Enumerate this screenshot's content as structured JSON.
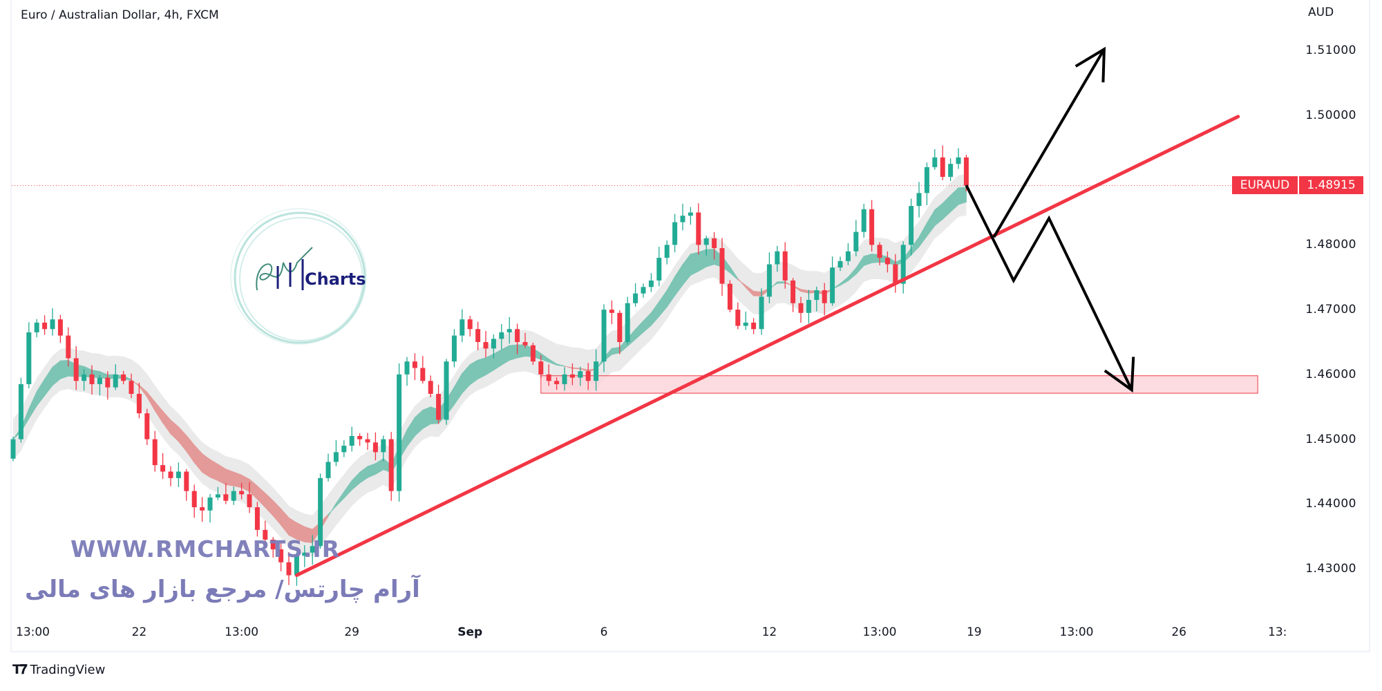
{
  "header": {
    "title": "Euro / Australian Dollar, 4h, FXCM",
    "currency": "AUD"
  },
  "price_tag": {
    "symbol": "EURAUD",
    "value": "1.48915",
    "color": "#f23645"
  },
  "watermark": {
    "url": "WWW.RMCHARTS.IR",
    "persian": "آرام چارتس/ مرجع بازار های مالی",
    "logo_text": "Charts",
    "color": "#7b7bb8"
  },
  "footer": {
    "brand": "TradingView"
  },
  "colors": {
    "up": "#22ab94",
    "down": "#f23645",
    "ribbon_up": "#7cc4b4",
    "ribbon_down": "#e39a98",
    "envelope": "#e6e6e6",
    "trendline": "#f23645",
    "zone": "#fbd6da"
  },
  "chart_data": {
    "type": "candlestick",
    "title": "Euro / Australian Dollar, 4h, FXCM",
    "ylabel": "AUD",
    "ylim": [
      1.4218,
      1.5178
    ],
    "y_ticks": [
      "1.51000",
      "1.50000",
      "1.48000",
      "1.47000",
      "1.46000",
      "1.45000",
      "1.44000",
      "1.43000"
    ],
    "y_tick_values": [
      1.51,
      1.5,
      1.48,
      1.47,
      1.46,
      1.45,
      1.44,
      1.43
    ],
    "x_ticks": [
      "13:00",
      "22",
      "13:00",
      "29",
      "Sep",
      "6",
      "12",
      "13:00",
      "19",
      "13:00",
      "26",
      "13:"
    ],
    "x_tick_bold": [
      false,
      false,
      false,
      false,
      true,
      false,
      false,
      false,
      false,
      false,
      false,
      false
    ],
    "x_tick_candle_index": [
      2.5,
      16,
      29,
      43,
      58,
      75,
      96,
      110,
      122,
      135,
      148,
      160.5
    ],
    "first_open": 1.447,
    "closes": [
      1.45,
      1.4585,
      1.4665,
      1.468,
      1.467,
      1.4685,
      1.466,
      1.4625,
      1.459,
      1.46,
      1.4585,
      1.4595,
      1.458,
      1.46,
      1.459,
      1.457,
      1.454,
      1.45,
      1.446,
      1.445,
      1.444,
      1.445,
      1.442,
      1.4395,
      1.439,
      1.441,
      1.4415,
      1.4405,
      1.442,
      1.4415,
      1.4395,
      1.436,
      1.4345,
      1.433,
      1.431,
      1.429,
      1.432,
      1.4325,
      1.4335,
      1.444,
      1.4465,
      1.448,
      1.449,
      1.4505,
      1.45,
      1.4495,
      1.448,
      1.45,
      1.442,
      1.46,
      1.462,
      1.461,
      1.459,
      1.457,
      1.453,
      1.462,
      1.466,
      1.4685,
      1.467,
      1.465,
      1.464,
      1.4655,
      1.4665,
      1.467,
      1.465,
      1.4645,
      1.462,
      1.46,
      1.459,
      1.4585,
      1.46,
      1.4595,
      1.4605,
      1.459,
      1.462,
      1.47,
      1.4695,
      1.465,
      1.471,
      1.4725,
      1.4735,
      1.4745,
      1.478,
      1.48,
      1.4835,
      1.4845,
      1.485,
      1.48,
      1.481,
      1.4795,
      1.474,
      1.47,
      1.4675,
      1.468,
      1.467,
      1.472,
      1.477,
      1.479,
      1.4745,
      1.471,
      1.4695,
      1.4715,
      1.473,
      1.471,
      1.4765,
      1.4775,
      1.479,
      1.482,
      1.4855,
      1.48,
      1.478,
      1.477,
      1.474,
      1.48,
      1.486,
      1.488,
      1.492,
      1.4935,
      1.4905,
      1.4925,
      1.4935,
      1.48915
    ],
    "current_price": 1.48915,
    "annotations": {
      "trendline": [
        [
          36.0,
          1.429
        ],
        [
          155.5,
          1.4998
        ]
      ],
      "support_zone": {
        "price_low": 1.4571,
        "price_high": 1.4598,
        "from_index": 67,
        "to_index": 158
      },
      "scenario_down": [
        [
          121,
          1.4892
        ],
        [
          127,
          1.4745
        ],
        [
          131.5,
          1.4841
        ],
        [
          142,
          1.4576
        ]
      ],
      "scenario_up": [
        [
          124.5,
          1.4812
        ],
        [
          138.5,
          1.5102
        ]
      ]
    }
  }
}
